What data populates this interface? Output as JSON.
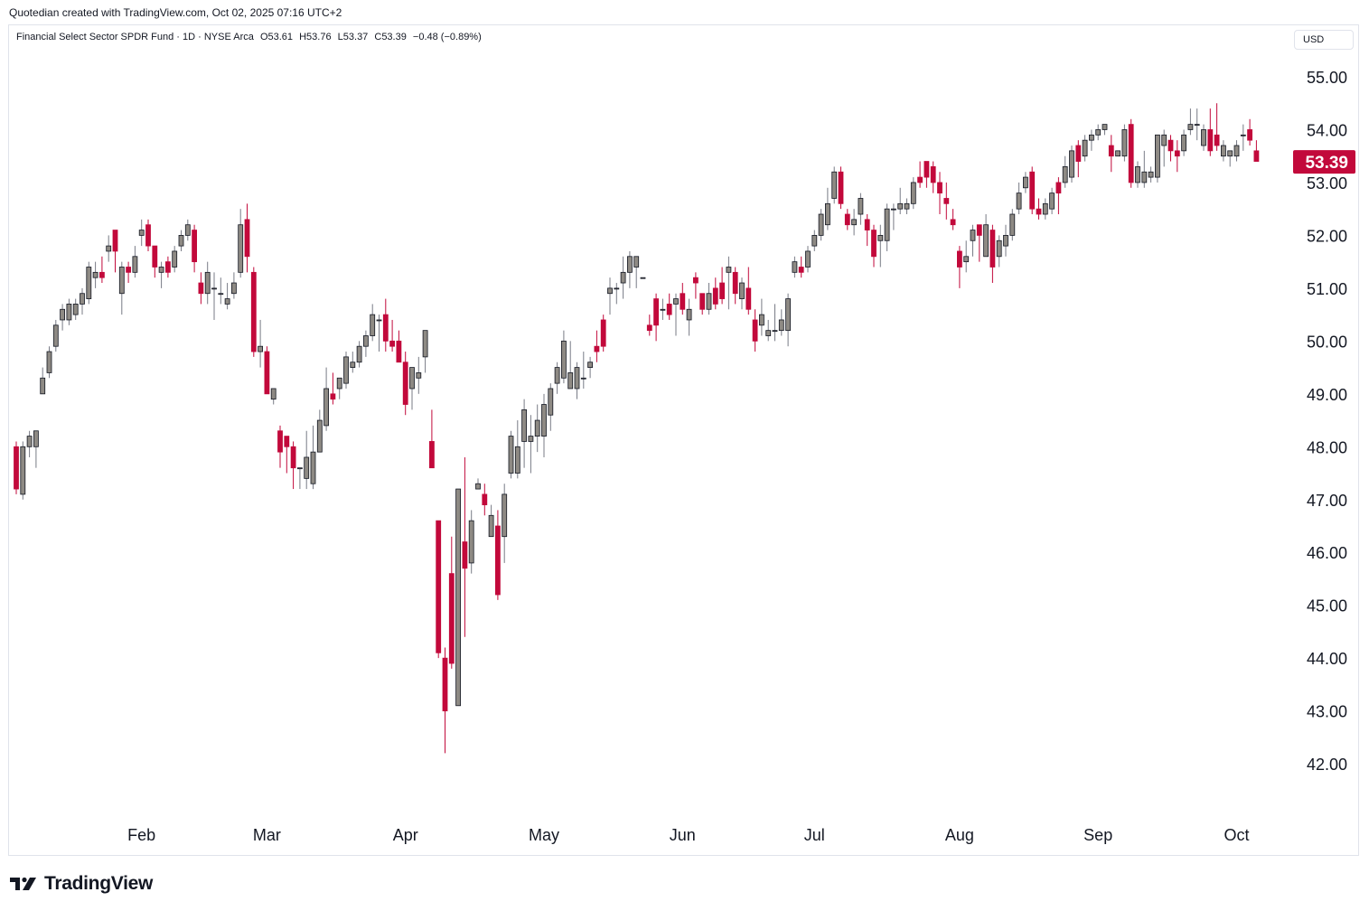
{
  "header": {
    "created_text": "Quotedian created with TradingView.com, Oct 02, 2025 07:16 UTC+2"
  },
  "legend": {
    "symbol_text": "Financial Select Sector SPDR Fund · 1D · NYSE Arca",
    "open": "O53.61",
    "high": "H53.76",
    "low": "L53.37",
    "close": "C53.39",
    "change": "−0.48 (−0.89%)"
  },
  "currency_label": "USD",
  "brand": {
    "name": "TradingView"
  },
  "colors": {
    "up": "#8e8a84",
    "down": "#c2093b",
    "wick_up": "#787b86",
    "price_tag_bg": "#c2093b"
  },
  "chart_data": {
    "type": "candlestick",
    "title": "Financial Select Sector SPDR Fund · 1D · NYSE Arca",
    "xlabel": "",
    "ylabel": "",
    "ylim": [
      41.0,
      55.5
    ],
    "y_ticks": [
      "55.00",
      "54.00",
      "53.00",
      "52.00",
      "51.00",
      "50.00",
      "49.00",
      "48.00",
      "47.00",
      "46.00",
      "45.00",
      "44.00",
      "43.00",
      "42.00"
    ],
    "x_ticks": [
      {
        "label": "Feb",
        "index": 19
      },
      {
        "label": "Mar",
        "index": 38
      },
      {
        "label": "Apr",
        "index": 59
      },
      {
        "label": "May",
        "index": 80
      },
      {
        "label": "Jun",
        "index": 101
      },
      {
        "label": "Jul",
        "index": 121
      },
      {
        "label": "Aug",
        "index": 143
      },
      {
        "label": "Sep",
        "index": 164
      },
      {
        "label": "Oct",
        "index": 185
      }
    ],
    "last_price": "53.39",
    "grid": false,
    "candles": [
      [
        48.0,
        47.2,
        48.1,
        47.1
      ],
      [
        47.1,
        48.0,
        48.1,
        47.0
      ],
      [
        48.0,
        48.2,
        48.3,
        47.8
      ],
      [
        48.0,
        48.3,
        48.3,
        47.6
      ],
      [
        49.0,
        49.3,
        49.5,
        49.0
      ],
      [
        49.4,
        49.8,
        49.9,
        49.3
      ],
      [
        49.9,
        50.3,
        50.4,
        49.8
      ],
      [
        50.4,
        50.6,
        50.7,
        50.2
      ],
      [
        50.4,
        50.7,
        50.8,
        50.3
      ],
      [
        50.5,
        50.7,
        50.8,
        50.4
      ],
      [
        50.7,
        50.9,
        51.0,
        50.5
      ],
      [
        50.8,
        51.4,
        51.5,
        50.7
      ],
      [
        51.2,
        51.3,
        51.5,
        51.0
      ],
      [
        51.3,
        51.2,
        51.6,
        51.1
      ],
      [
        51.7,
        51.8,
        52.0,
        51.5
      ],
      [
        52.1,
        51.7,
        52.1,
        51.3
      ],
      [
        50.9,
        51.4,
        51.5,
        50.5
      ],
      [
        51.4,
        51.3,
        51.5,
        51.1
      ],
      [
        51.3,
        51.6,
        51.8,
        51.2
      ],
      [
        52.0,
        52.1,
        52.3,
        51.8
      ],
      [
        52.2,
        51.8,
        52.3,
        51.7
      ],
      [
        51.8,
        51.4,
        51.8,
        51.2
      ],
      [
        51.3,
        51.4,
        51.5,
        51.0
      ],
      [
        51.5,
        51.3,
        51.6,
        51.2
      ],
      [
        51.4,
        51.7,
        51.8,
        51.3
      ],
      [
        51.8,
        52.0,
        52.1,
        51.7
      ],
      [
        52.0,
        52.2,
        52.3,
        51.9
      ],
      [
        52.1,
        51.5,
        52.2,
        51.3
      ],
      [
        51.1,
        50.9,
        51.3,
        50.7
      ],
      [
        50.9,
        51.3,
        51.5,
        50.7
      ],
      [
        51.0,
        51.0,
        51.3,
        50.4
      ],
      [
        50.9,
        50.9,
        51.2,
        50.7
      ],
      [
        50.7,
        50.8,
        51.1,
        50.6
      ],
      [
        50.9,
        51.1,
        51.3,
        50.8
      ],
      [
        51.3,
        52.2,
        52.5,
        51.2
      ],
      [
        52.3,
        51.6,
        52.6,
        51.3
      ],
      [
        51.3,
        49.8,
        51.4,
        49.7
      ],
      [
        49.8,
        49.9,
        50.4,
        49.5
      ],
      [
        49.8,
        49.0,
        49.9,
        49.0
      ],
      [
        48.9,
        49.1,
        49.0,
        48.8
      ],
      [
        48.3,
        47.9,
        48.4,
        47.6
      ],
      [
        48.2,
        48.0,
        48.2,
        47.5
      ],
      [
        48.0,
        47.6,
        48.1,
        47.2
      ],
      [
        47.6,
        47.6,
        47.6,
        47.2
      ],
      [
        47.4,
        47.8,
        48.3,
        47.2
      ],
      [
        47.3,
        47.9,
        48.4,
        47.2
      ],
      [
        47.9,
        48.5,
        48.7,
        47.9
      ],
      [
        48.4,
        49.1,
        49.5,
        48.3
      ],
      [
        49.0,
        48.9,
        49.4,
        48.8
      ],
      [
        49.1,
        49.3,
        49.3,
        48.9
      ],
      [
        49.2,
        49.7,
        49.8,
        49.1
      ],
      [
        49.5,
        49.6,
        49.8,
        49.4
      ],
      [
        49.6,
        49.9,
        50.0,
        49.5
      ],
      [
        49.9,
        50.1,
        50.2,
        49.7
      ],
      [
        50.1,
        50.5,
        50.7,
        50.0
      ],
      [
        50.4,
        50.4,
        50.5,
        49.8
      ],
      [
        50.5,
        50.0,
        50.8,
        49.8
      ],
      [
        50.0,
        49.9,
        50.4,
        49.8
      ],
      [
        50.0,
        49.6,
        50.2,
        49.6
      ],
      [
        49.6,
        48.8,
        49.8,
        48.6
      ],
      [
        49.1,
        49.5,
        49.5,
        48.7
      ],
      [
        49.3,
        49.4,
        49.7,
        49.0
      ],
      [
        49.7,
        50.2,
        50.2,
        49.4
      ],
      [
        48.1,
        47.6,
        48.7,
        47.6
      ],
      [
        46.6,
        44.1,
        46.6,
        44.0
      ],
      [
        44.0,
        43.0,
        44.2,
        42.2
      ],
      [
        45.6,
        43.9,
        46.3,
        43.8
      ],
      [
        43.1,
        47.2,
        47.2,
        43.1
      ],
      [
        46.2,
        45.7,
        47.8,
        44.4
      ],
      [
        45.8,
        46.6,
        46.8,
        45.6
      ],
      [
        47.2,
        47.3,
        47.4,
        47.2
      ],
      [
        47.1,
        46.9,
        47.3,
        46.7
      ],
      [
        46.3,
        46.7,
        46.9,
        46.3
      ],
      [
        46.5,
        45.2,
        46.8,
        45.1
      ],
      [
        46.3,
        47.1,
        47.3,
        45.8
      ],
      [
        47.5,
        48.2,
        48.3,
        47.4
      ],
      [
        47.5,
        48.0,
        48.5,
        47.4
      ],
      [
        48.1,
        48.7,
        48.9,
        47.6
      ],
      [
        48.1,
        48.2,
        48.6,
        47.5
      ],
      [
        48.2,
        48.5,
        48.8,
        47.9
      ],
      [
        48.2,
        48.8,
        49.0,
        47.8
      ],
      [
        48.6,
        49.1,
        49.2,
        48.3
      ],
      [
        49.2,
        49.5,
        49.6,
        49.0
      ],
      [
        49.3,
        50.0,
        50.2,
        49.2
      ],
      [
        49.1,
        49.4,
        50.0,
        49.1
      ],
      [
        49.1,
        49.5,
        49.6,
        48.9
      ],
      [
        49.3,
        49.3,
        49.8,
        49.1
      ],
      [
        49.5,
        49.6,
        49.7,
        49.3
      ],
      [
        49.9,
        49.8,
        50.2,
        49.6
      ],
      [
        50.4,
        49.9,
        50.5,
        49.8
      ],
      [
        50.9,
        51.0,
        51.2,
        50.5
      ],
      [
        51.0,
        51.0,
        51.1,
        50.7
      ],
      [
        51.1,
        51.3,
        51.6,
        50.8
      ],
      [
        51.3,
        51.6,
        51.7,
        51.0
      ],
      [
        51.4,
        51.6,
        51.6,
        51.0
      ],
      [
        51.2,
        51.2,
        51.2,
        51.2
      ],
      [
        50.3,
        50.2,
        50.5,
        50.1
      ],
      [
        50.8,
        50.3,
        50.9,
        50.0
      ],
      [
        50.6,
        50.6,
        50.8,
        50.4
      ],
      [
        50.7,
        50.5,
        50.9,
        50.4
      ],
      [
        50.7,
        50.8,
        50.9,
        50.1
      ],
      [
        50.9,
        50.6,
        51.1,
        50.5
      ],
      [
        50.4,
        50.6,
        50.8,
        50.1
      ],
      [
        51.2,
        51.1,
        51.3,
        50.8
      ],
      [
        50.9,
        50.6,
        50.7,
        50.5
      ],
      [
        50.6,
        50.9,
        51.1,
        50.5
      ],
      [
        51.0,
        50.7,
        51.2,
        50.6
      ],
      [
        51.1,
        50.8,
        51.4,
        50.7
      ],
      [
        51.3,
        51.4,
        51.6,
        50.6
      ],
      [
        51.3,
        50.9,
        51.4,
        50.7
      ],
      [
        50.8,
        51.1,
        51.2,
        50.6
      ],
      [
        51.0,
        50.6,
        51.4,
        50.5
      ],
      [
        50.4,
        50.0,
        50.6,
        49.8
      ],
      [
        50.3,
        50.5,
        50.8,
        50.1
      ],
      [
        50.1,
        50.2,
        50.4,
        50.0
      ],
      [
        50.2,
        50.2,
        50.7,
        50.0
      ],
      [
        50.2,
        50.4,
        50.6,
        50.1
      ],
      [
        50.2,
        50.8,
        50.9,
        49.9
      ],
      [
        51.3,
        51.5,
        51.6,
        51.2
      ],
      [
        51.4,
        51.3,
        51.6,
        51.2
      ],
      [
        51.4,
        51.7,
        51.8,
        51.3
      ],
      [
        51.8,
        52.0,
        52.1,
        51.7
      ],
      [
        52.0,
        52.4,
        52.5,
        51.9
      ],
      [
        52.2,
        52.6,
        52.9,
        52.1
      ],
      [
        52.7,
        53.2,
        53.3,
        52.6
      ],
      [
        53.2,
        52.6,
        53.3,
        52.5
      ],
      [
        52.4,
        52.2,
        52.5,
        52.1
      ],
      [
        52.2,
        52.3,
        52.5,
        52.0
      ],
      [
        52.4,
        52.7,
        52.8,
        52.2
      ],
      [
        52.3,
        52.1,
        52.4,
        51.8
      ],
      [
        52.1,
        51.6,
        52.2,
        51.4
      ],
      [
        51.9,
        52.0,
        52.2,
        51.4
      ],
      [
        51.9,
        52.5,
        52.6,
        51.7
      ],
      [
        52.5,
        52.5,
        52.6,
        52.1
      ],
      [
        52.5,
        52.6,
        52.9,
        52.4
      ],
      [
        52.5,
        52.6,
        52.7,
        52.4
      ],
      [
        52.6,
        53.0,
        53.1,
        52.5
      ],
      [
        53.1,
        53.0,
        53.4,
        52.9
      ],
      [
        53.4,
        53.1,
        53.4,
        52.9
      ],
      [
        53.3,
        53.0,
        53.4,
        52.8
      ],
      [
        53.0,
        52.8,
        53.2,
        52.4
      ],
      [
        52.7,
        52.6,
        53.0,
        52.3
      ],
      [
        52.3,
        52.2,
        52.5,
        52.1
      ],
      [
        51.7,
        51.4,
        51.8,
        51.0
      ],
      [
        51.5,
        51.6,
        51.9,
        51.3
      ],
      [
        51.9,
        52.1,
        52.2,
        51.6
      ],
      [
        52.2,
        52.0,
        52.2,
        51.5
      ],
      [
        51.6,
        52.2,
        52.4,
        51.6
      ],
      [
        52.1,
        51.4,
        52.2,
        51.1
      ],
      [
        51.6,
        51.9,
        52.0,
        51.4
      ],
      [
        51.8,
        52.0,
        52.2,
        51.6
      ],
      [
        52.0,
        52.4,
        52.5,
        51.9
      ],
      [
        52.5,
        52.8,
        53.0,
        52.4
      ],
      [
        52.9,
        53.1,
        53.2,
        52.8
      ],
      [
        53.2,
        52.5,
        53.3,
        52.4
      ],
      [
        52.5,
        52.4,
        52.7,
        52.3
      ],
      [
        52.4,
        52.6,
        52.7,
        52.3
      ],
      [
        52.5,
        52.8,
        52.9,
        52.4
      ],
      [
        53.0,
        52.8,
        53.1,
        52.4
      ],
      [
        53.0,
        53.3,
        53.5,
        52.9
      ],
      [
        53.1,
        53.6,
        53.7,
        53.0
      ],
      [
        53.7,
        53.4,
        53.8,
        53.1
      ],
      [
        53.5,
        53.8,
        53.9,
        53.4
      ],
      [
        53.8,
        53.9,
        54.0,
        53.6
      ],
      [
        53.9,
        54.0,
        54.1,
        53.8
      ],
      [
        54.0,
        54.1,
        54.1,
        53.9
      ],
      [
        53.7,
        53.5,
        53.9,
        53.2
      ],
      [
        53.5,
        53.6,
        53.6,
        53.5
      ],
      [
        53.5,
        54.0,
        54.1,
        53.4
      ],
      [
        54.1,
        53.0,
        54.2,
        52.9
      ],
      [
        53.0,
        53.3,
        53.4,
        52.9
      ],
      [
        53.0,
        53.2,
        53.6,
        52.9
      ],
      [
        53.1,
        53.2,
        53.3,
        53.0
      ],
      [
        53.1,
        53.9,
        53.9,
        53.0
      ],
      [
        53.7,
        53.9,
        54.0,
        53.3
      ],
      [
        53.8,
        53.6,
        53.9,
        53.4
      ],
      [
        53.6,
        53.5,
        53.8,
        53.2
      ],
      [
        53.6,
        53.9,
        54.0,
        53.5
      ],
      [
        54.0,
        54.1,
        54.4,
        53.9
      ],
      [
        54.1,
        54.1,
        54.4,
        53.8
      ],
      [
        53.7,
        54.0,
        54.1,
        53.6
      ],
      [
        54.0,
        53.6,
        54.4,
        53.5
      ],
      [
        53.9,
        53.7,
        54.5,
        53.6
      ],
      [
        53.5,
        53.7,
        53.8,
        53.4
      ],
      [
        53.5,
        53.6,
        53.6,
        53.3
      ],
      [
        53.5,
        53.7,
        53.8,
        53.4
      ],
      [
        53.9,
        53.9,
        54.1,
        53.6
      ],
      [
        54.0,
        53.8,
        54.2,
        53.7
      ],
      [
        53.6,
        53.4,
        53.8,
        53.4
      ]
    ]
  }
}
